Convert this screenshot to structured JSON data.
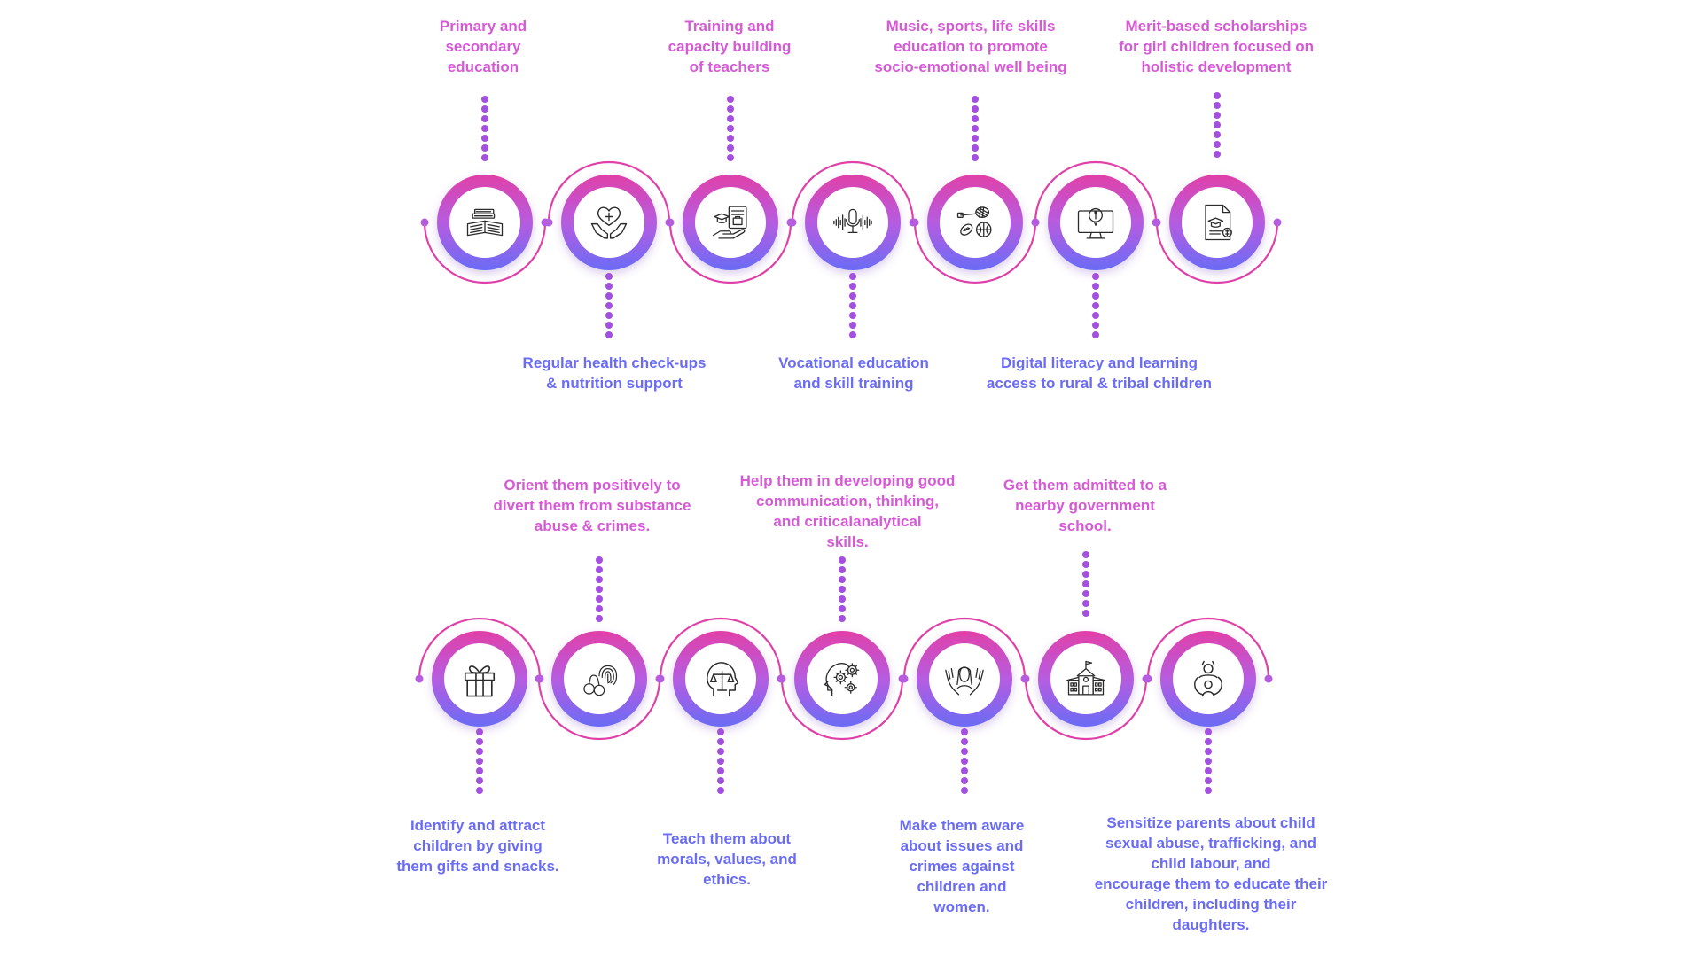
{
  "colors": {
    "pink": "#E040A8",
    "violet": "#B65CE0",
    "blue": "#6A6CF5",
    "dot": "#A34FE0",
    "icon": "#2B2B2B"
  },
  "rows": [
    {
      "items": [
        {
          "icon": "books-icon",
          "text": "Primary and\nsecondary\neducation",
          "label_pos": "top"
        },
        {
          "icon": "heart-hands-icon",
          "text": "Regular health check-ups\n& nutrition support",
          "label_pos": "bottom"
        },
        {
          "icon": "teacher-training-icon",
          "text": "Training and\ncapacity building\nof teachers",
          "label_pos": "top"
        },
        {
          "icon": "microphone-soundwave-icon",
          "text": "Vocational education\nand skill training",
          "label_pos": "bottom"
        },
        {
          "icon": "sports-equipment-icon",
          "text": "Music, sports, life skills\neducation to promote\nsocio-emotional well being",
          "label_pos": "top"
        },
        {
          "icon": "computer-info-icon",
          "text": "Digital literacy and learning\naccess to rural & tribal children",
          "label_pos": "bottom"
        },
        {
          "icon": "scholarship-certificate-icon",
          "text": "Merit-based scholarships\nfor girl children focused on\nholistic development",
          "label_pos": "top"
        }
      ]
    },
    {
      "items": [
        {
          "icon": "gift-icon",
          "text": "Identify and attract\nchildren by giving\nthem gifts and snacks.",
          "label_pos": "bottom"
        },
        {
          "icon": "handcuffs-fingerprint-icon",
          "text": "Orient them positively to\ndivert them from substance\nabuse & crimes.",
          "label_pos": "top"
        },
        {
          "icon": "head-scales-icon",
          "text": "Teach them about\nmorals, values, and\nethics.",
          "label_pos": "bottom"
        },
        {
          "icon": "head-gears-icon",
          "text": "Help them in developing good\ncommunication, thinking,\nand criticalanalytical\nskills.",
          "label_pos": "top"
        },
        {
          "icon": "protecting-hands-woman-icon",
          "text": "Make them aware\nabout issues and\ncrimes against\nchildren and\nwomen.",
          "label_pos": "bottom"
        },
        {
          "icon": "school-building-icon",
          "text": "Get them admitted to a\nnearby government\nschool.",
          "label_pos": "top"
        },
        {
          "icon": "parent-child-icon",
          "text": "Sensitize parents about child\nsexual abuse, trafficking, and\nchild labour, and\nencourage them to educate their\nchildren, including their\ndaughters.",
          "label_pos": "bottom"
        }
      ]
    }
  ]
}
